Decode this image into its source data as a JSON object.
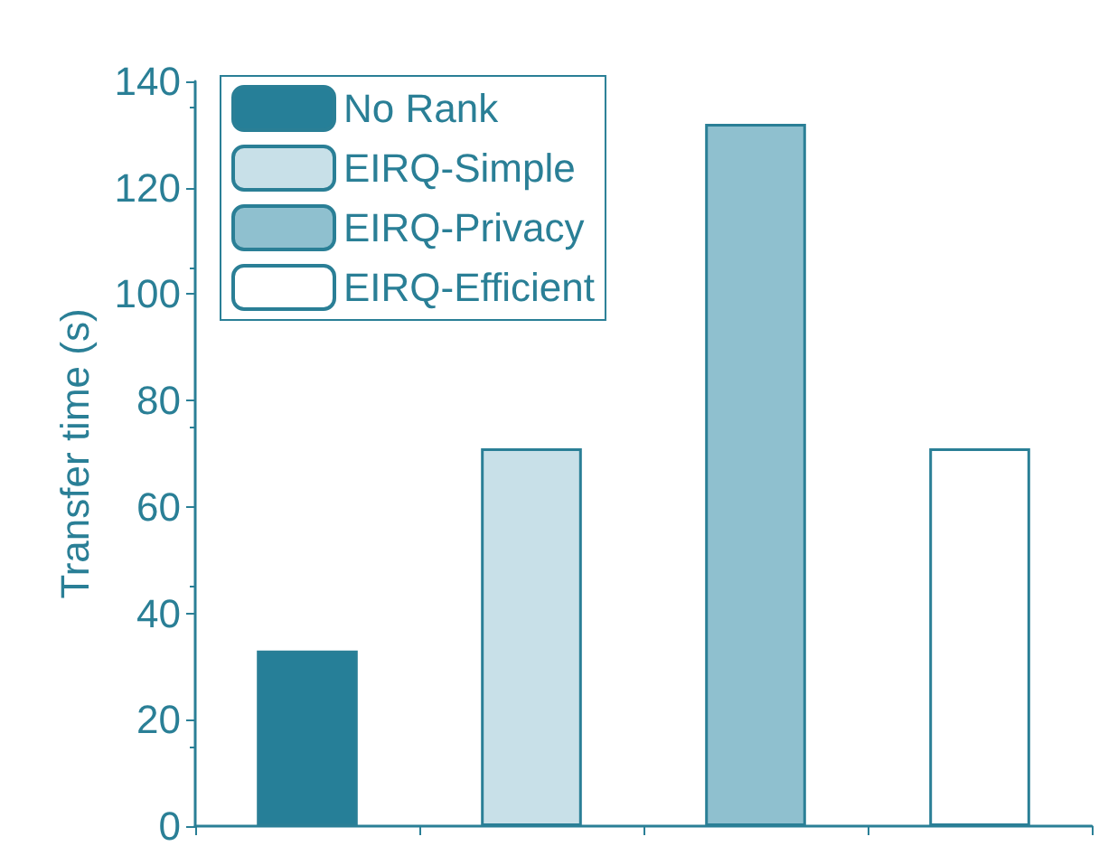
{
  "chart_data": {
    "type": "bar",
    "ylabel": "Transfer time (s)",
    "categories": [
      null,
      null,
      null,
      null
    ],
    "series": [
      {
        "name": "No Rank",
        "color": "#267f98",
        "values": [
          33,
          null,
          null,
          null
        ]
      },
      {
        "name": "EIRQ-Simple",
        "color": "#c8e0e8",
        "values": [
          null,
          71,
          null,
          null
        ]
      },
      {
        "name": "EIRQ-Privacy",
        "color": "#8fc0cf",
        "values": [
          null,
          null,
          132,
          null
        ]
      },
      {
        "name": "EIRQ-Efficient",
        "color": "#ffffff",
        "values": [
          null,
          null,
          null,
          71
        ]
      }
    ],
    "ylim": [
      0,
      140
    ],
    "yticks": [
      0,
      20,
      40,
      60,
      80,
      100,
      120,
      140
    ],
    "grid": false,
    "legend": "top left"
  }
}
